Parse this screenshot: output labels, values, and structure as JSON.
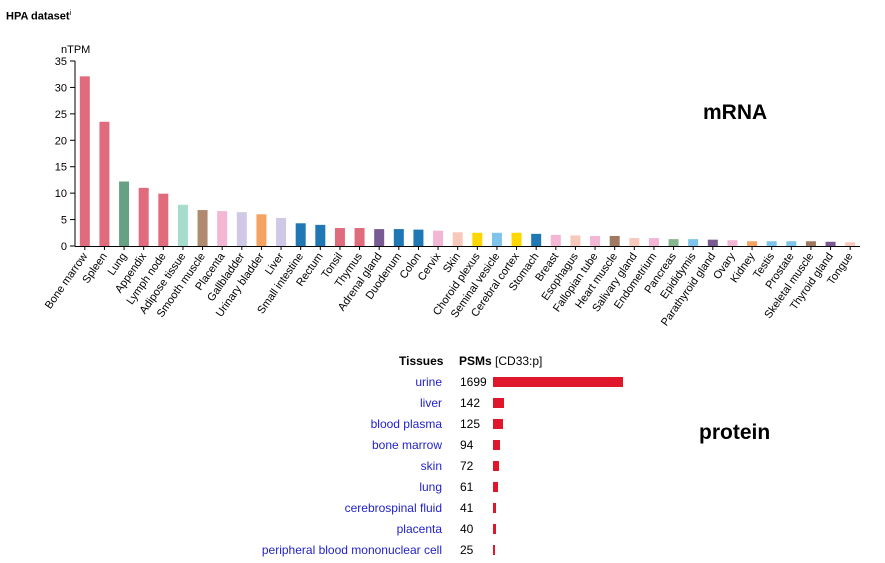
{
  "title": "HPA dataset",
  "title_sup": "i",
  "mrna_label": "mRNA",
  "protein_label": "protein",
  "chart_data": {
    "type": "bar",
    "ylabel": "nTPM",
    "ylim": [
      0,
      35
    ],
    "yticks": [
      0,
      5,
      10,
      15,
      20,
      25,
      30,
      35
    ],
    "categories": [
      "Bone marrow",
      "Spleen",
      "Lung",
      "Appendix",
      "Lymph node",
      "Adipose tissue",
      "Smooth muscle",
      "Placenta",
      "Gallbladder",
      "Urinary bladder",
      "Liver",
      "Small intestine",
      "Rectum",
      "Tonsil",
      "Thymus",
      "Adrenal gland",
      "Duodenum",
      "Colon",
      "Cervix",
      "Skin",
      "Choroid plexus",
      "Seminal vesicle",
      "Cerebral cortex",
      "Stomach",
      "Breast",
      "Esophagus",
      "Fallopian tube",
      "Heart muscle",
      "Salivary gland",
      "Endometrium",
      "Pancreas",
      "Epididymis",
      "Parathyroid gland",
      "Ovary",
      "Kidney",
      "Testis",
      "Prostate",
      "Skeletal muscle",
      "Thyroid gland",
      "Tongue"
    ],
    "values": [
      32.1,
      23.5,
      12.2,
      11.0,
      9.9,
      7.8,
      6.8,
      6.6,
      6.4,
      6.0,
      5.3,
      4.3,
      4.0,
      3.4,
      3.4,
      3.2,
      3.2,
      3.1,
      2.9,
      2.6,
      2.5,
      2.5,
      2.5,
      2.3,
      2.1,
      2.0,
      1.9,
      1.9,
      1.5,
      1.5,
      1.3,
      1.3,
      1.2,
      1.1,
      0.9,
      0.9,
      0.9,
      0.9,
      0.8,
      0.7
    ],
    "colors": [
      "#e06b7c",
      "#e06b7c",
      "#66a085",
      "#e06b7c",
      "#e06b7c",
      "#a6dccb",
      "#b08a6f",
      "#f3b6d4",
      "#cfc8e6",
      "#f4a460",
      "#cfc8e6",
      "#1f77b4",
      "#1f77b4",
      "#e06b7c",
      "#e06b7c",
      "#7a5a92",
      "#1f77b4",
      "#1f77b4",
      "#f3b6d4",
      "#f7c9bb",
      "#ffd700",
      "#7ec4ea",
      "#ffd700",
      "#1f77b4",
      "#f3b6d4",
      "#f7c9bb",
      "#f3b6d4",
      "#a07a60",
      "#f7c9bb",
      "#f3b6d4",
      "#86b68e",
      "#7ec4ea",
      "#7a5a92",
      "#f3b6d4",
      "#f4a460",
      "#7ec4ea",
      "#7ec4ea",
      "#a07a60",
      "#7a5a92",
      "#f7c9bb"
    ]
  },
  "protein": {
    "header_tissues": "Tissues",
    "header_psms": "PSMs",
    "header_psms_suffix": "[CD33:p]",
    "max_value": 1699,
    "bar_color": "#e0162b",
    "rows": [
      {
        "tissue": "urine",
        "value": "1699"
      },
      {
        "tissue": "liver",
        "value": "142"
      },
      {
        "tissue": "blood plasma",
        "value": "125"
      },
      {
        "tissue": "bone marrow",
        "value": "94"
      },
      {
        "tissue": "skin",
        "value": "72"
      },
      {
        "tissue": "lung",
        "value": "61"
      },
      {
        "tissue": "cerebrospinal fluid",
        "value": "41"
      },
      {
        "tissue": "placenta",
        "value": "40"
      },
      {
        "tissue": "peripheral blood mononuclear cell",
        "value": "25"
      }
    ]
  }
}
